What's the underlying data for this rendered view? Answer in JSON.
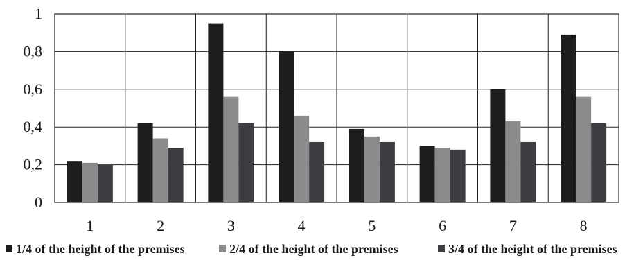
{
  "chart_data": {
    "type": "bar",
    "title": "",
    "xlabel": "",
    "ylabel": "",
    "categories": [
      "1",
      "2",
      "3",
      "4",
      "5",
      "6",
      "7",
      "8"
    ],
    "ylim": [
      0,
      1
    ],
    "yticks": [
      {
        "value": 0,
        "label": "0"
      },
      {
        "value": 0.2,
        "label": "0,2"
      },
      {
        "value": 0.4,
        "label": "0,4"
      },
      {
        "value": 0.6,
        "label": "0,6"
      },
      {
        "value": 0.8,
        "label": "0,8"
      },
      {
        "value": 1,
        "label": "1"
      }
    ],
    "grid": true,
    "legend_position": "bottom",
    "series": [
      {
        "name": "1/4 of the height of the premises",
        "color": "#1b1d1f",
        "values": [
          0.22,
          0.42,
          0.95,
          0.8,
          0.39,
          0.3,
          0.6,
          0.89
        ]
      },
      {
        "name": "2/4 of the height of the premises",
        "color": "#8a8b8d",
        "values": [
          0.21,
          0.34,
          0.56,
          0.46,
          0.35,
          0.29,
          0.43,
          0.56
        ]
      },
      {
        "name": "3/4 of the height of the premises",
        "color": "#3b3d40",
        "values": [
          0.2,
          0.29,
          0.42,
          0.32,
          0.32,
          0.28,
          0.32,
          0.42
        ]
      }
    ]
  }
}
